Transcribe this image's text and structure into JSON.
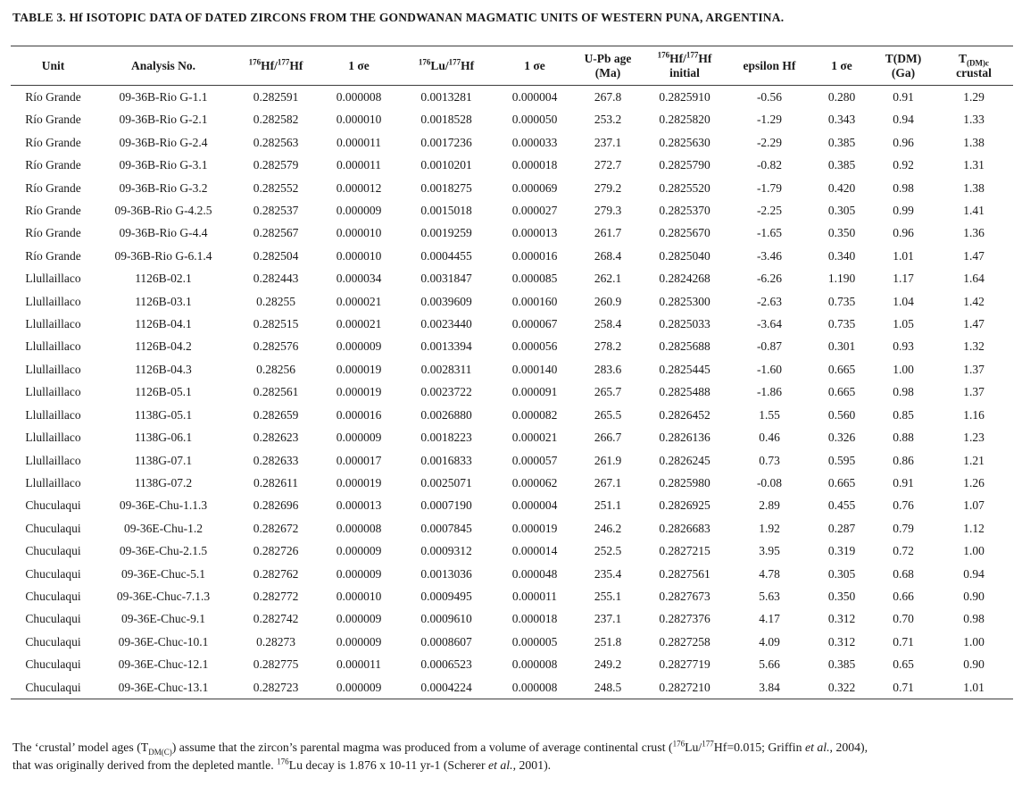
{
  "colors": {
    "text": "#1a1a1a",
    "rule": "#3d3d3d",
    "background": "#ffffff"
  },
  "page": {
    "title": "TABLE 3. Hf ISOTOPIC DATA OF DATED ZIRCONS FROM THE GONDWANAN MAGMATIC UNITS OF WESTERN PUNA, ARGENTINA."
  },
  "table": {
    "columns": [
      {
        "id": "unit",
        "label": [
          {
            "t": "Unit"
          }
        ]
      },
      {
        "id": "analysis-no",
        "label": [
          {
            "t": "Analysis No."
          }
        ]
      },
      {
        "id": "hf-hf",
        "label": [
          {
            "t": "176",
            "fmt": "sup"
          },
          {
            "t": "Hf/"
          },
          {
            "t": "177",
            "fmt": "sup"
          },
          {
            "t": "Hf"
          }
        ]
      },
      {
        "id": "sigma-1",
        "label": [
          {
            "t": "1 σe"
          }
        ]
      },
      {
        "id": "lu-hf",
        "label": [
          {
            "t": "176",
            "fmt": "sup"
          },
          {
            "t": "Lu/"
          },
          {
            "t": "177",
            "fmt": "sup"
          },
          {
            "t": "Hf"
          }
        ]
      },
      {
        "id": "sigma-2",
        "label": [
          {
            "t": "1 σe"
          }
        ]
      },
      {
        "id": "upb-age",
        "label": [
          {
            "t": "U-Pb age"
          },
          {
            "fmt": "br"
          },
          {
            "t": "(Ma)"
          }
        ]
      },
      {
        "id": "hf-initial",
        "label": [
          {
            "t": "176",
            "fmt": "sup"
          },
          {
            "t": "Hf/"
          },
          {
            "t": "177",
            "fmt": "sup"
          },
          {
            "t": "Hf"
          },
          {
            "fmt": "br"
          },
          {
            "t": "initial"
          }
        ]
      },
      {
        "id": "epsilon-hf",
        "label": [
          {
            "t": "epsilon Hf"
          }
        ]
      },
      {
        "id": "sigma-3",
        "label": [
          {
            "t": "1 σe"
          }
        ]
      },
      {
        "id": "tdm-ga",
        "label": [
          {
            "t": "T(DM)"
          },
          {
            "fmt": "br"
          },
          {
            "t": "(Ga)"
          }
        ]
      },
      {
        "id": "tdm-crustal",
        "label": [
          {
            "t": "T"
          },
          {
            "t": "(DM)c",
            "fmt": "sub"
          },
          {
            "fmt": "br"
          },
          {
            "t": "crustal"
          }
        ]
      }
    ],
    "rows": [
      [
        "Río Grande",
        "09-36B-Rio G-1.1",
        "0.282591",
        "0.000008",
        "0.0013281",
        "0.000004",
        "267.8",
        "0.2825910",
        "-0.56",
        "0.280",
        "0.91",
        "1.29"
      ],
      [
        "Río Grande",
        "09-36B-Rio G-2.1",
        "0.282582",
        "0.000010",
        "0.0018528",
        "0.000050",
        "253.2",
        "0.2825820",
        "-1.29",
        "0.343",
        "0.94",
        "1.33"
      ],
      [
        "Río Grande",
        "09-36B-Rio G-2.4",
        "0.282563",
        "0.000011",
        "0.0017236",
        "0.000033",
        "237.1",
        "0.2825630",
        "-2.29",
        "0.385",
        "0.96",
        "1.38"
      ],
      [
        "Río Grande",
        "09-36B-Rio G-3.1",
        "0.282579",
        "0.000011",
        "0.0010201",
        "0.000018",
        "272.7",
        "0.2825790",
        "-0.82",
        "0.385",
        "0.92",
        "1.31"
      ],
      [
        "Río Grande",
        "09-36B-Rio G-3.2",
        "0.282552",
        "0.000012",
        "0.0018275",
        "0.000069",
        "279.2",
        "0.2825520",
        "-1.79",
        "0.420",
        "0.98",
        "1.38"
      ],
      [
        "Río Grande",
        "09-36B-Rio G-4.2.5",
        "0.282537",
        "0.000009",
        "0.0015018",
        "0.000027",
        "279.3",
        "0.2825370",
        "-2.25",
        "0.305",
        "0.99",
        "1.41"
      ],
      [
        "Río Grande",
        "09-36B-Rio G-4.4",
        "0.282567",
        "0.000010",
        "0.0019259",
        "0.000013",
        "261.7",
        "0.2825670",
        "-1.65",
        "0.350",
        "0.96",
        "1.36"
      ],
      [
        "Río Grande",
        "09-36B-Rio G-6.1.4",
        "0.282504",
        "0.000010",
        "0.0004455",
        "0.000016",
        "268.4",
        "0.2825040",
        "-3.46",
        "0.340",
        "1.01",
        "1.47"
      ],
      [
        "Llullaillaco",
        "1126B-02.1",
        "0.282443",
        "0.000034",
        "0.0031847",
        "0.000085",
        "262.1",
        "0.2824268",
        "-6.26",
        "1.190",
        "1.17",
        "1.64"
      ],
      [
        "Llullaillaco",
        "1126B-03.1",
        "0.28255",
        "0.000021",
        "0.0039609",
        "0.000160",
        "260.9",
        "0.2825300",
        "-2.63",
        "0.735",
        "1.04",
        "1.42"
      ],
      [
        "Llullaillaco",
        "1126B-04.1",
        "0.282515",
        "0.000021",
        "0.0023440",
        "0.000067",
        "258.4",
        "0.2825033",
        "-3.64",
        "0.735",
        "1.05",
        "1.47"
      ],
      [
        "Llullaillaco",
        "1126B-04.2",
        "0.282576",
        "0.000009",
        "0.0013394",
        "0.000056",
        "278.2",
        "0.2825688",
        "-0.87",
        "0.301",
        "0.93",
        "1.32"
      ],
      [
        "Llullaillaco",
        "1126B-04.3",
        "0.28256",
        "0.000019",
        "0.0028311",
        "0.000140",
        "283.6",
        "0.2825445",
        "-1.60",
        "0.665",
        "1.00",
        "1.37"
      ],
      [
        "Llullaillaco",
        "1126B-05.1",
        "0.282561",
        "0.000019",
        "0.0023722",
        "0.000091",
        "265.7",
        "0.2825488",
        "-1.86",
        "0.665",
        "0.98",
        "1.37"
      ],
      [
        "Llullaillaco",
        "1138G-05.1",
        "0.282659",
        "0.000016",
        "0.0026880",
        "0.000082",
        "265.5",
        "0.2826452",
        "1.55",
        "0.560",
        "0.85",
        "1.16"
      ],
      [
        "Llullaillaco",
        "1138G-06.1",
        "0.282623",
        "0.000009",
        "0.0018223",
        "0.000021",
        "266.7",
        "0.2826136",
        "0.46",
        "0.326",
        "0.88",
        "1.23"
      ],
      [
        "Llullaillaco",
        "1138G-07.1",
        "0.282633",
        "0.000017",
        "0.0016833",
        "0.000057",
        "261.9",
        "0.2826245",
        "0.73",
        "0.595",
        "0.86",
        "1.21"
      ],
      [
        "Llullaillaco",
        "1138G-07.2",
        "0.282611",
        "0.000019",
        "0.0025071",
        "0.000062",
        "267.1",
        "0.2825980",
        "-0.08",
        "0.665",
        "0.91",
        "1.26"
      ],
      [
        "Chuculaqui",
        "09-36E-Chu-1.1.3",
        "0.282696",
        "0.000013",
        "0.0007190",
        "0.000004",
        "251.1",
        "0.2826925",
        "2.89",
        "0.455",
        "0.76",
        "1.07"
      ],
      [
        "Chuculaqui",
        "09-36E-Chu-1.2",
        "0.282672",
        "0.000008",
        "0.0007845",
        "0.000019",
        "246.2",
        "0.2826683",
        "1.92",
        "0.287",
        "0.79",
        "1.12"
      ],
      [
        "Chuculaqui",
        "09-36E-Chu-2.1.5",
        "0.282726",
        "0.000009",
        "0.0009312",
        "0.000014",
        "252.5",
        "0.2827215",
        "3.95",
        "0.319",
        "0.72",
        "1.00"
      ],
      [
        "Chuculaqui",
        "09-36E-Chuc-5.1",
        "0.282762",
        "0.000009",
        "0.0013036",
        "0.000048",
        "235.4",
        "0.2827561",
        "4.78",
        "0.305",
        "0.68",
        "0.94"
      ],
      [
        "Chuculaqui",
        "09-36E-Chuc-7.1.3",
        "0.282772",
        "0.000010",
        "0.0009495",
        "0.000011",
        "255.1",
        "0.2827673",
        "5.63",
        "0.350",
        "0.66",
        "0.90"
      ],
      [
        "Chuculaqui",
        "09-36E-Chuc-9.1",
        "0.282742",
        "0.000009",
        "0.0009610",
        "0.000018",
        "237.1",
        "0.2827376",
        "4.17",
        "0.312",
        "0.70",
        "0.98"
      ],
      [
        "Chuculaqui",
        "09-36E-Chuc-10.1",
        "0.28273",
        "0.000009",
        "0.0008607",
        "0.000005",
        "251.8",
        "0.2827258",
        "4.09",
        "0.312",
        "0.71",
        "1.00"
      ],
      [
        "Chuculaqui",
        "09-36E-Chuc-12.1",
        "0.282775",
        "0.000011",
        "0.0006523",
        "0.000008",
        "249.2",
        "0.2827719",
        "5.66",
        "0.385",
        "0.65",
        "0.90"
      ],
      [
        "Chuculaqui",
        "09-36E-Chuc-13.1",
        "0.282723",
        "0.000009",
        "0.0004224",
        "0.000008",
        "248.5",
        "0.2827210",
        "3.84",
        "0.322",
        "0.71",
        "1.01"
      ]
    ]
  },
  "footnote": {
    "segments": [
      {
        "t": "The ‘crustal’ model ages (T"
      },
      {
        "t": "DM(C)",
        "fmt": "sub"
      },
      {
        "t": ") assume that the zircon’s parental magma was produced from a volume of average continental crust ("
      },
      {
        "t": "176",
        "fmt": "sup"
      },
      {
        "t": "Lu/"
      },
      {
        "t": "177",
        "fmt": "sup"
      },
      {
        "t": "Hf=0.015; Griffin "
      },
      {
        "t": "et al.",
        "fmt": "i"
      },
      {
        "t": ", 2004),"
      },
      {
        "fmt": "br"
      },
      {
        "t": "that was originally derived from the depleted mantle. "
      },
      {
        "t": "176",
        "fmt": "sup"
      },
      {
        "t": "Lu decay is 1.876 x 10-11 yr-1 (Scherer "
      },
      {
        "t": "et al.",
        "fmt": "i"
      },
      {
        "t": ", 2001)."
      }
    ]
  }
}
